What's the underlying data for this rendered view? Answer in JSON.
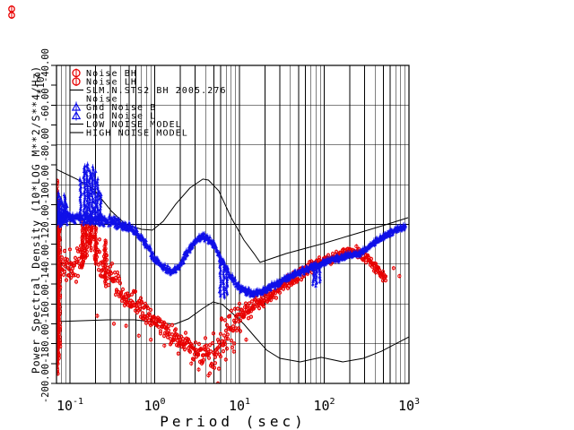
{
  "page": {
    "background": "#ffffff"
  },
  "corner_glyph": {
    "color": "#e80000",
    "description": "small red stacked-rings glyph at window top-left"
  },
  "colors": {
    "noise_red": "#e80000",
    "gnd_blue": "#1010e8",
    "grid": "#000000"
  },
  "chart_data": {
    "type": "scatter",
    "title": "",
    "xlabel": "Period (sec)",
    "ylabel": "Power Spectral Density (10*LOG M**2/S**4/Hz)",
    "y_multiplier": {
      "base": "*10",
      "exp": "0"
    },
    "x_scale": "log",
    "y_scale": "linear",
    "xlim": [
      0.069,
      1000
    ],
    "ylim": [
      -200,
      -40
    ],
    "x_ticks": [
      {
        "base": "10",
        "exp": "-1"
      },
      {
        "base": "10",
        "exp": "0"
      },
      {
        "base": "10",
        "exp": "1"
      },
      {
        "base": "10",
        "exp": "2"
      },
      {
        "base": "10",
        "exp": "3"
      }
    ],
    "y_tick_labels": [
      "-40.00",
      "-60.00",
      "-80.00",
      "-100.00",
      "-120.00",
      "-140.00",
      "-160.00",
      "-180.00",
      "-200.00"
    ],
    "y_tick_values": [
      -40,
      -60,
      -80,
      -100,
      -120,
      -140,
      -160,
      -180,
      -200
    ],
    "y_minor_step": 10,
    "grid": {
      "vertical": "all log ticks full height",
      "horizontal": "every 20 dB"
    },
    "legend": [
      {
        "label": "Noise BH",
        "marker": "circle-stem",
        "color": "#e80000"
      },
      {
        "label": "Noise LH",
        "marker": "circle-stem",
        "color": "#e80000"
      },
      {
        "label": "SLM.N.STS2 BH 2005.276",
        "marker": "line",
        "color": "#000000"
      },
      {
        "label": "Noise",
        "marker": "none",
        "color": "#000000"
      },
      {
        "label": "Gnd Noise B",
        "marker": "triangle-stem",
        "color": "#1010e8"
      },
      {
        "label": "Gnd Noise L",
        "marker": "triangle-stem",
        "color": "#1010e8"
      },
      {
        "label": "LOW NOISE MODEL",
        "marker": "line",
        "color": "#000000"
      },
      {
        "label": "HIGH NOISE MODEL",
        "marker": "line",
        "color": "#000000"
      }
    ],
    "series": [
      {
        "name": "Noise BH/LH",
        "marker": "circle-stem",
        "color": "#e80000",
        "density": 2,
        "center": [
          [
            0.069,
            -144.6
          ],
          [
            0.086,
            -142.3
          ],
          [
            0.105,
            -141.4
          ],
          [
            0.128,
            -137.8
          ],
          [
            0.151,
            -131
          ],
          [
            0.171,
            -126.5
          ],
          [
            0.188,
            -128
          ],
          [
            0.208,
            -132.4
          ],
          [
            0.235,
            -138.7
          ],
          [
            0.28,
            -144.6
          ],
          [
            0.34,
            -149.1
          ],
          [
            0.41,
            -153.6
          ],
          [
            0.5,
            -157.6
          ],
          [
            0.58,
            -159.4
          ],
          [
            0.67,
            -162.1
          ],
          [
            0.79,
            -165.3
          ],
          [
            0.94,
            -168
          ],
          [
            1.12,
            -170.2
          ],
          [
            1.33,
            -172.5
          ],
          [
            1.61,
            -175.2
          ],
          [
            1.95,
            -177.9
          ],
          [
            2.38,
            -180.2
          ],
          [
            2.9,
            -182.4
          ],
          [
            3.51,
            -184.7
          ],
          [
            4.17,
            -186.5
          ],
          [
            4.83,
            -185.6
          ],
          [
            5.57,
            -182.4
          ],
          [
            6.44,
            -178.4
          ],
          [
            7.45,
            -174.3
          ],
          [
            8.64,
            -170.2
          ],
          [
            10,
            -166.6
          ],
          [
            11.9,
            -163.5
          ],
          [
            14.4,
            -160.8
          ],
          [
            18,
            -158.5
          ],
          [
            22.9,
            -155.4
          ],
          [
            29.9,
            -151.8
          ],
          [
            39.2,
            -148.2
          ],
          [
            51.2,
            -145
          ],
          [
            65.5,
            -142.3
          ],
          [
            81.6,
            -140
          ],
          [
            101,
            -138.2
          ],
          [
            126,
            -136.9
          ],
          [
            157,
            -135.5
          ],
          [
            190,
            -134.6
          ],
          [
            226,
            -134.1
          ],
          [
            262,
            -134.6
          ],
          [
            303,
            -136
          ],
          [
            343,
            -138.2
          ],
          [
            388,
            -140.9
          ],
          [
            437,
            -143.6
          ],
          [
            495,
            -146.3
          ],
          [
            531,
            -147.7
          ]
        ],
        "spread_db": [
          [
            0.069,
            9
          ],
          [
            0.12,
            11
          ],
          [
            0.2,
            12
          ],
          [
            0.35,
            8
          ],
          [
            0.7,
            6.5
          ],
          [
            1.5,
            6
          ],
          [
            3,
            6.5
          ],
          [
            4.5,
            12
          ],
          [
            6,
            15
          ],
          [
            8,
            13
          ],
          [
            11,
            7
          ],
          [
            20,
            4.5
          ],
          [
            60,
            3.5
          ],
          [
            150,
            3
          ],
          [
            300,
            2.8
          ],
          [
            531,
            3
          ]
        ],
        "columns": [
          [
            0.0705,
            -98,
            -196
          ],
          [
            0.0725,
            -108,
            -190
          ],
          [
            0.075,
            -118,
            -182
          ],
          [
            0.14,
            -119,
            -142
          ],
          [
            0.155,
            -120,
            -137
          ],
          [
            0.175,
            -118,
            -133
          ],
          [
            0.2,
            -122,
            -140
          ],
          [
            0.26,
            -128,
            -150
          ]
        ],
        "outliers": [
          [
            0.21,
            -166
          ],
          [
            0.33,
            -170
          ],
          [
            0.46,
            -171
          ],
          [
            0.65,
            -176
          ],
          [
            0.9,
            -178
          ],
          [
            1.3,
            -181
          ],
          [
            1.9,
            -185
          ],
          [
            2.7,
            -190
          ],
          [
            3.3,
            -193
          ],
          [
            4.3,
            -196
          ],
          [
            5.57,
            -200
          ],
          [
            6.9,
            -188
          ],
          [
            8.6,
            -184
          ],
          [
            12,
            -178
          ],
          [
            240,
            -131
          ],
          [
            660,
            -142
          ],
          [
            770,
            -146
          ]
        ]
      },
      {
        "name": "Gnd Noise B/L",
        "marker": "triangle-stem",
        "color": "#1010e8",
        "density": 3,
        "center": [
          [
            0.069,
            -116.5
          ],
          [
            0.1,
            -116.2
          ],
          [
            0.15,
            -117.1
          ],
          [
            0.22,
            -118
          ],
          [
            0.31,
            -118.4
          ],
          [
            0.45,
            -120.7
          ],
          [
            0.61,
            -123.8
          ],
          [
            0.79,
            -129.7
          ],
          [
            0.99,
            -137
          ],
          [
            1.2,
            -140.5
          ],
          [
            1.47,
            -143.2
          ],
          [
            1.69,
            -143.7
          ],
          [
            1.95,
            -141
          ],
          [
            2.38,
            -134.6
          ],
          [
            2.83,
            -129.7
          ],
          [
            3.35,
            -127
          ],
          [
            3.87,
            -126.1
          ],
          [
            4.48,
            -128
          ],
          [
            5.2,
            -131.5
          ],
          [
            6,
            -136.9
          ],
          [
            7,
            -142.3
          ],
          [
            8.1,
            -146.8
          ],
          [
            9.3,
            -150.4
          ],
          [
            11,
            -153.1
          ],
          [
            13.7,
            -154.5
          ],
          [
            17.5,
            -154
          ],
          [
            23.4,
            -151.3
          ],
          [
            32,
            -148.2
          ],
          [
            46.6,
            -145
          ],
          [
            67,
            -141.9
          ],
          [
            85.6,
            -140.5
          ],
          [
            109,
            -138.2
          ],
          [
            150,
            -136.9
          ],
          [
            200,
            -135.5
          ],
          [
            255,
            -134.6
          ],
          [
            311,
            -132.4
          ],
          [
            376,
            -129.7
          ],
          [
            467,
            -127
          ],
          [
            584,
            -124.3
          ],
          [
            727,
            -122.5
          ],
          [
            910,
            -121
          ]
        ],
        "spread_db": [
          [
            0.069,
            4
          ],
          [
            0.15,
            3.2
          ],
          [
            0.5,
            2.8
          ],
          [
            1,
            2.5
          ],
          [
            3,
            2.5
          ],
          [
            10,
            2.2
          ],
          [
            50,
            2
          ],
          [
            200,
            1.8
          ],
          [
            910,
            1.6
          ]
        ],
        "columns": [
          [
            0.072,
            -104,
            -120
          ],
          [
            0.076,
            -106,
            -121
          ],
          [
            0.081,
            -108,
            -120
          ],
          [
            0.086,
            -105,
            -119
          ],
          [
            0.091,
            -109,
            -120
          ],
          [
            0.134,
            -97,
            -116
          ],
          [
            0.148,
            -90.5,
            -116
          ],
          [
            0.159,
            -89.6,
            -117
          ],
          [
            0.171,
            -92.7,
            -117
          ],
          [
            0.184,
            -90.9,
            -117
          ],
          [
            0.198,
            -93.6,
            -117
          ],
          [
            0.213,
            -97.2,
            -118
          ],
          [
            0.229,
            -104,
            -118
          ],
          [
            5.9,
            -137,
            -156
          ],
          [
            6.5,
            -140,
            -157
          ],
          [
            7.1,
            -142,
            -155
          ],
          [
            75,
            -140,
            -150
          ],
          [
            81,
            -141,
            -151
          ],
          [
            88,
            -140,
            -149
          ]
        ],
        "outliers": []
      },
      {
        "name": "SLM.N.STS2 BH 2005.276",
        "type": "line-jagged",
        "color": "#000000",
        "points": [
          [
            21,
            -152
          ],
          [
            25,
            -150
          ],
          [
            30,
            -148.6
          ],
          [
            36,
            -147
          ],
          [
            42,
            -145.5
          ],
          [
            50,
            -144
          ],
          [
            59,
            -142.8
          ],
          [
            70,
            -141.4
          ],
          [
            84,
            -140
          ],
          [
            98,
            -139
          ],
          [
            111,
            -137.8
          ],
          [
            125,
            -137.2
          ],
          [
            135,
            -136.4
          ]
        ]
      },
      {
        "name": "LOW NOISE MODEL",
        "type": "line",
        "color": "#000000",
        "points": [
          [
            0.069,
            -168.9
          ],
          [
            0.28,
            -168
          ],
          [
            0.58,
            -168
          ],
          [
            1.06,
            -169.3
          ],
          [
            1.73,
            -170.2
          ],
          [
            2.5,
            -167.5
          ],
          [
            3.6,
            -162.6
          ],
          [
            4.9,
            -159
          ],
          [
            6.3,
            -160.3
          ],
          [
            8.1,
            -164.4
          ],
          [
            11.3,
            -170.2
          ],
          [
            15.5,
            -177
          ],
          [
            21,
            -183.3
          ],
          [
            30,
            -187.4
          ],
          [
            52,
            -189.2
          ],
          [
            92,
            -186.9
          ],
          [
            166,
            -189.2
          ],
          [
            290,
            -187.4
          ],
          [
            474,
            -183.8
          ],
          [
            687,
            -180.2
          ],
          [
            1000,
            -176.6
          ]
        ]
      },
      {
        "name": "HIGH NOISE MODEL",
        "type": "line",
        "color": "#000000",
        "points": [
          [
            0.069,
            -92.3
          ],
          [
            0.12,
            -97.2
          ],
          [
            0.19,
            -102.2
          ],
          [
            0.31,
            -113.4
          ],
          [
            0.45,
            -119.8
          ],
          [
            0.7,
            -122.5
          ],
          [
            0.94,
            -122.9
          ],
          [
            1.26,
            -118.4
          ],
          [
            1.77,
            -109.8
          ],
          [
            2.6,
            -101.7
          ],
          [
            3.7,
            -97.2
          ],
          [
            4.3,
            -97.7
          ],
          [
            5.7,
            -103.1
          ],
          [
            8,
            -116.6
          ],
          [
            11.3,
            -127.9
          ],
          [
            14.8,
            -134.6
          ],
          [
            17.5,
            -139.1
          ],
          [
            36,
            -134.6
          ],
          [
            96,
            -129.7
          ],
          [
            255,
            -124.3
          ],
          [
            531,
            -120.2
          ],
          [
            975,
            -116.6
          ]
        ]
      }
    ]
  }
}
